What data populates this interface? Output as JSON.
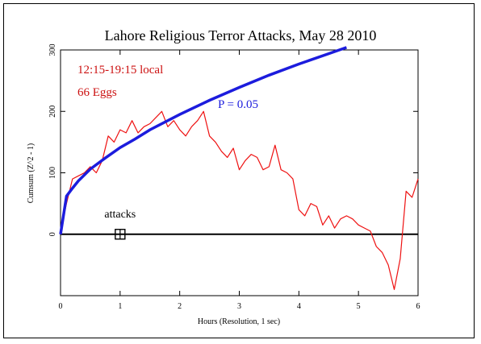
{
  "chart_data": {
    "type": "line",
    "title": "Lahore Religious Terror Attacks, May 28 2010",
    "xlabel": "Hours (Resolution, 1 sec)",
    "ylabel": "Cumsum (Z^2 - 1)",
    "xlim": [
      0,
      6
    ],
    "ylim": [
      -100,
      300
    ],
    "x_ticks": [
      "0",
      "1",
      "2",
      "3",
      "4",
      "5",
      "6"
    ],
    "y_ticks": [
      "0",
      "100",
      "200",
      "300"
    ],
    "grid": false,
    "annotations": {
      "time_window": "12:15-19:15 local",
      "eggs": "66 Eggs",
      "probability": "P = 0.05",
      "event_label": "attacks",
      "event_x": 1.0,
      "event_y": 0
    },
    "colors": {
      "cumsum": "#ee1111",
      "probability_envelope": "#1c1cdd",
      "annotation_red": "#cc1111",
      "baseline": "#000000"
    },
    "series": [
      {
        "x": [
          0,
          0.1,
          0.2,
          0.3,
          0.4,
          0.5,
          0.6,
          0.7,
          0.8,
          0.9,
          1.0,
          1.1,
          1.2,
          1.3,
          1.4,
          1.5,
          1.6,
          1.7,
          1.8,
          1.9,
          2.0,
          2.1,
          2.2,
          2.3,
          2.4,
          2.5,
          2.6,
          2.7,
          2.8,
          2.9,
          3.0,
          3.1,
          3.2,
          3.3,
          3.4,
          3.5,
          3.6,
          3.7,
          3.8,
          3.9,
          4.0,
          4.1,
          4.2,
          4.3,
          4.4,
          4.5,
          4.6,
          4.7,
          4.8,
          4.9,
          5.0,
          5.1,
          5.2,
          5.3,
          5.4,
          5.5,
          5.6,
          5.7,
          5.8,
          5.9,
          6.0
        ],
        "values": [
          5,
          50,
          90,
          95,
          100,
          110,
          100,
          120,
          160,
          150,
          170,
          165,
          185,
          165,
          175,
          180,
          190,
          200,
          175,
          185,
          170,
          160,
          175,
          185,
          200,
          160,
          150,
          135,
          125,
          140,
          105,
          120,
          130,
          125,
          105,
          110,
          145,
          105,
          100,
          90,
          40,
          30,
          50,
          45,
          15,
          30,
          10,
          25,
          30,
          25,
          15,
          10,
          5,
          -20,
          -30,
          -50,
          -90,
          -40,
          70,
          60,
          90
        ]
      },
      {
        "x": [
          0,
          0.1,
          0.2,
          0.3,
          0.5,
          0.75,
          1.0,
          1.25,
          1.5,
          2.0,
          2.5,
          3.0,
          3.5,
          4.0,
          4.5,
          4.8
        ],
        "values": [
          0,
          62,
          75,
          87,
          106,
          124,
          141,
          155,
          170,
          195,
          218,
          239,
          259,
          277,
          294,
          304
        ]
      }
    ]
  }
}
